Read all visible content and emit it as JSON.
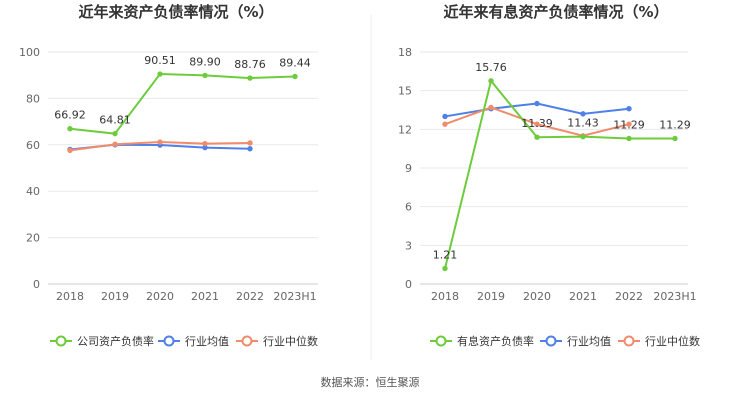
{
  "source_text": "数据来源：恒生聚源",
  "colors": {
    "company": "#6dcc3c",
    "average": "#4e80e8",
    "median": "#f08c6c"
  },
  "chart_data": [
    {
      "type": "line",
      "title": "近年来资产负债率情况（%）",
      "categories": [
        "2018",
        "2019",
        "2020",
        "2021",
        "2022",
        "2023H1"
      ],
      "ylim": [
        0,
        100
      ],
      "yticks": [
        0,
        20,
        40,
        60,
        80,
        100
      ],
      "grid": true,
      "legend_position": "bottom",
      "series": [
        {
          "name": "公司资产负债率",
          "color": "#6dcc3c",
          "labeled": true,
          "values": [
            66.92,
            64.81,
            90.51,
            89.9,
            88.76,
            89.44
          ],
          "labels": [
            "66.92",
            "64.81",
            "90.51",
            "89.90",
            "88.76",
            "89.44"
          ]
        },
        {
          "name": "行业均值",
          "color": "#4e80e8",
          "labeled": false,
          "values": [
            58.0,
            60.0,
            59.9,
            58.8,
            58.3,
            null
          ]
        },
        {
          "name": "行业中位数",
          "color": "#f08c6c",
          "labeled": false,
          "values": [
            57.6,
            60.2,
            61.2,
            60.5,
            60.8,
            null
          ]
        }
      ]
    },
    {
      "type": "line",
      "title": "近年来有息资产负债率情况（%）",
      "categories": [
        "2018",
        "2019",
        "2020",
        "2021",
        "2022",
        "2023H1"
      ],
      "ylim": [
        0,
        18
      ],
      "yticks": [
        0,
        3,
        6,
        9,
        12,
        15,
        18
      ],
      "grid": true,
      "legend_position": "bottom",
      "series": [
        {
          "name": "有息资产负债率",
          "color": "#6dcc3c",
          "labeled": true,
          "values": [
            1.21,
            15.76,
            11.39,
            11.43,
            11.29,
            11.29
          ],
          "labels": [
            "1.21",
            "15.76",
            "11.39",
            "11.43",
            "11.29",
            "11.29"
          ]
        },
        {
          "name": "行业均值",
          "color": "#4e80e8",
          "labeled": false,
          "values": [
            13.0,
            13.6,
            14.0,
            13.2,
            13.6,
            null
          ]
        },
        {
          "name": "行业中位数",
          "color": "#f08c6c",
          "labeled": false,
          "values": [
            12.4,
            13.7,
            12.4,
            11.5,
            12.4,
            null
          ]
        }
      ]
    }
  ]
}
